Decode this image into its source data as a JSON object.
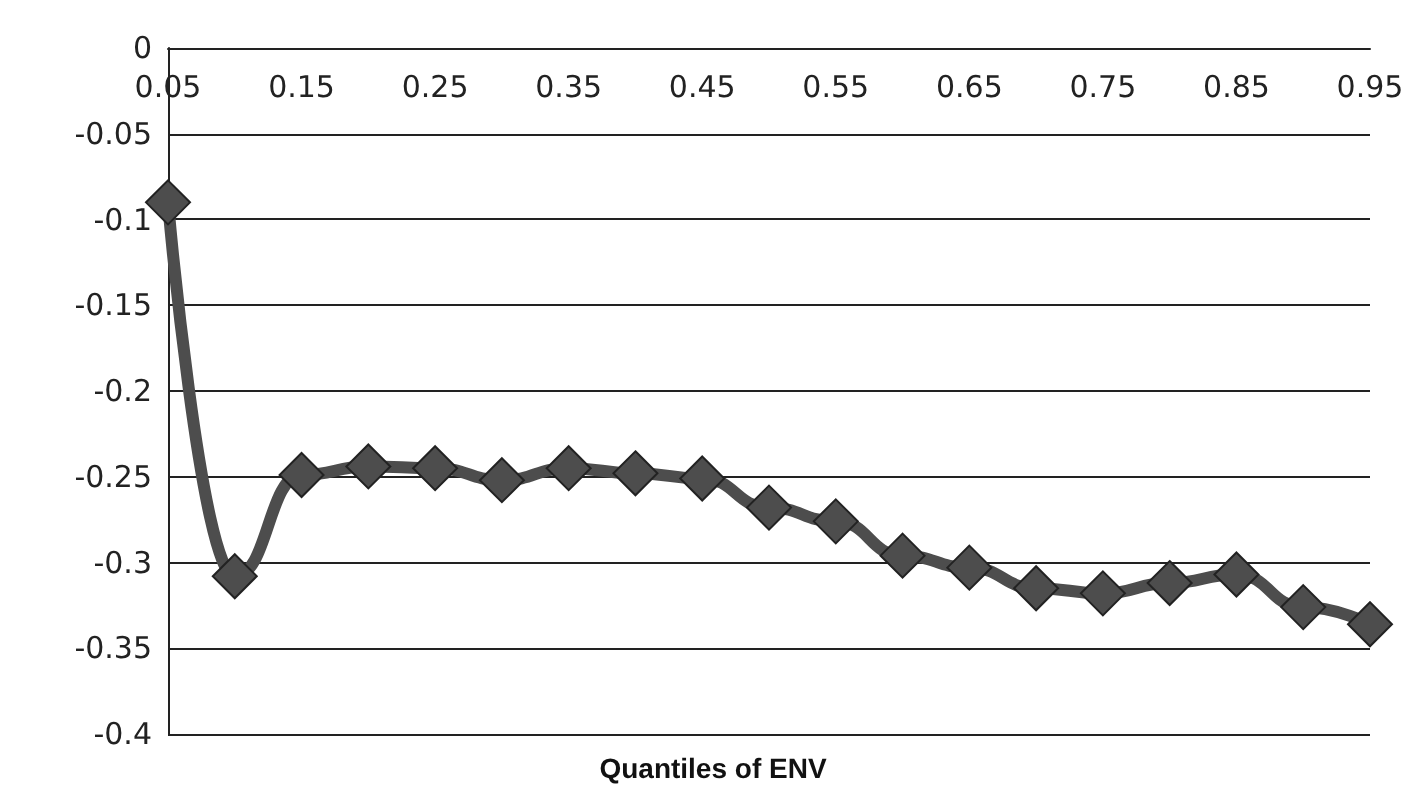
{
  "chart_data": {
    "type": "line",
    "xlabel": "Quantiles of ENV",
    "categories": [
      "0.05",
      null,
      "0.15",
      null,
      "0.25",
      null,
      "0.35",
      null,
      "0.45",
      null,
      "0.55",
      null,
      "0.65",
      null,
      "0.75",
      null,
      "0.85",
      null,
      "0.95"
    ],
    "series": [
      {
        "color": "#4d4d4d",
        "values": [
          -0.09,
          -0.308,
          -0.249,
          -0.244,
          -0.245,
          -0.252,
          -0.245,
          -0.248,
          -0.251,
          -0.268,
          -0.276,
          -0.296,
          -0.303,
          -0.315,
          -0.318,
          -0.312,
          -0.307,
          -0.326,
          -0.336
        ]
      }
    ],
    "ylim": [
      -0.4,
      0
    ],
    "yticks": [
      -0.4,
      -0.35,
      -0.3,
      -0.25,
      -0.2,
      -0.15,
      -0.1,
      -0.05,
      0
    ],
    "grid": "y",
    "marker": "diamond",
    "line_style": "solid"
  }
}
